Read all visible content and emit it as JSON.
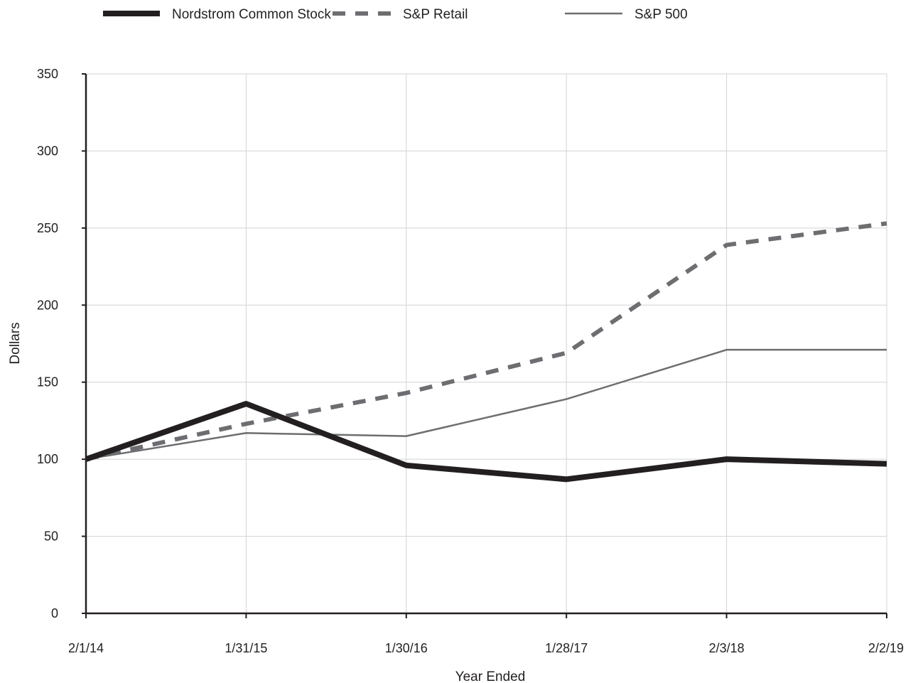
{
  "chart_data": {
    "type": "line",
    "title": "",
    "xlabel": "Year Ended",
    "ylabel": "Dollars",
    "categories": [
      "2/1/14",
      "1/31/15",
      "1/30/16",
      "1/28/17",
      "2/3/18",
      "2/2/19"
    ],
    "y_ticks": [
      "0",
      "50",
      "100",
      "150",
      "200",
      "250",
      "300",
      "350"
    ],
    "ylim": [
      0,
      350
    ],
    "grid": true,
    "legend_position": "top",
    "series": [
      {
        "name": "Nordstrom Common Stock",
        "values": [
          100,
          136,
          96,
          87,
          100,
          97
        ],
        "color": "#231f20",
        "style": "solid-thick"
      },
      {
        "name": "S&P Retail",
        "values": [
          100,
          123,
          143,
          169,
          239,
          253
        ],
        "color": "#6d6e71",
        "style": "dashed"
      },
      {
        "name": "S&P 500",
        "values": [
          100,
          117,
          115,
          139,
          171,
          171
        ],
        "color": "#6d6e71",
        "style": "solid-thin"
      }
    ]
  }
}
